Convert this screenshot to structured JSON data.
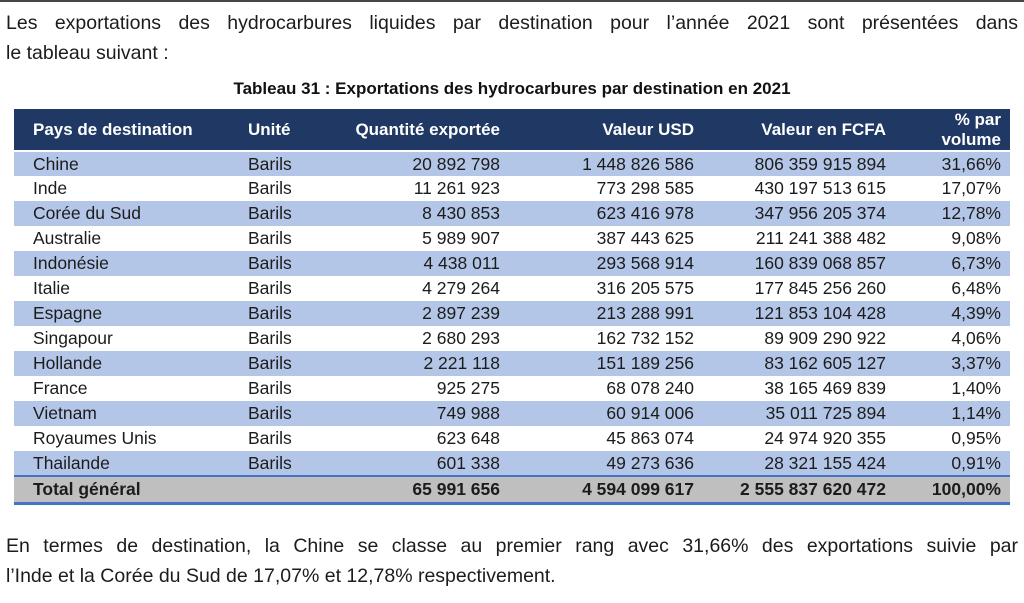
{
  "intro": {
    "lines": [
      "Les exportations des hydrocarbures liquides par destination pour l’année 2021 sont présentées dans",
      "le tableau suivant :"
    ]
  },
  "table": {
    "title": "Tableau 31 : Exportations des hydrocarbures par destination en 2021",
    "columns": [
      "Pays de destination",
      "Unité",
      "Quantité exportée",
      "Valeur USD",
      "Valeur en FCFA",
      "% par volume"
    ],
    "rows": [
      [
        "Chine",
        "Barils",
        "20 892 798",
        "1 448 826 586",
        "806 359 915 894",
        "31,66%"
      ],
      [
        "Inde",
        "Barils",
        "11 261 923",
        "773 298 585",
        "430 197 513 615",
        "17,07%"
      ],
      [
        "Corée du Sud",
        "Barils",
        "8 430 853",
        "623 416 978",
        "347 956 205 374",
        "12,78%"
      ],
      [
        "Australie",
        "Barils",
        "5 989 907",
        "387 443 625",
        "211 241 388 482",
        "9,08%"
      ],
      [
        "Indonésie",
        "Barils",
        "4 438 011",
        "293 568 914",
        "160 839 068 857",
        "6,73%"
      ],
      [
        "Italie",
        "Barils",
        "4 279 264",
        "316 205 575",
        "177 845 256 260",
        "6,48%"
      ],
      [
        "Espagne",
        "Barils",
        "2 897 239",
        "213 288 991",
        "121 853 104 428",
        "4,39%"
      ],
      [
        "Singapour",
        "Barils",
        "2 680 293",
        "162 732 152",
        "89 909 290 922",
        "4,06%"
      ],
      [
        "Hollande",
        "Barils",
        "2 221 118",
        "151 189 256",
        "83 162 605 127",
        "3,37%"
      ],
      [
        "France",
        "Barils",
        "925 275",
        "68 078 240",
        "38 165 469 839",
        "1,40%"
      ],
      [
        "Vietnam",
        "Barils",
        "749 988",
        "60 914 006",
        "35 011 725 894",
        "1,14%"
      ],
      [
        "Royaumes Unis",
        "Barils",
        "623 648",
        "45 863 074",
        "24 974 920 355",
        "0,95%"
      ],
      [
        "Thailande",
        "Barils",
        "601 338",
        "49 273 636",
        "28 321 155 424",
        "0,91%"
      ]
    ],
    "total_row": [
      "Total général",
      "",
      "65 991 656",
      "4 594 099 617",
      "2 555 837 620 472",
      "100,00%"
    ]
  },
  "closing": {
    "lines": [
      "En termes de destination, la Chine se classe au premier rang avec 31,66% des exportations suivie par",
      "l’Inde et la Corée du Sud de 17,07% et 12,78% respectivement."
    ]
  },
  "colors": {
    "header_bg": "#1F3864",
    "header_text": "#FFFFFF",
    "alt_row_bg": "#B4C6E7",
    "total_row_bg": "#BFBFBF",
    "total_border": "#4472C4",
    "page_top_divider": "#454545"
  }
}
